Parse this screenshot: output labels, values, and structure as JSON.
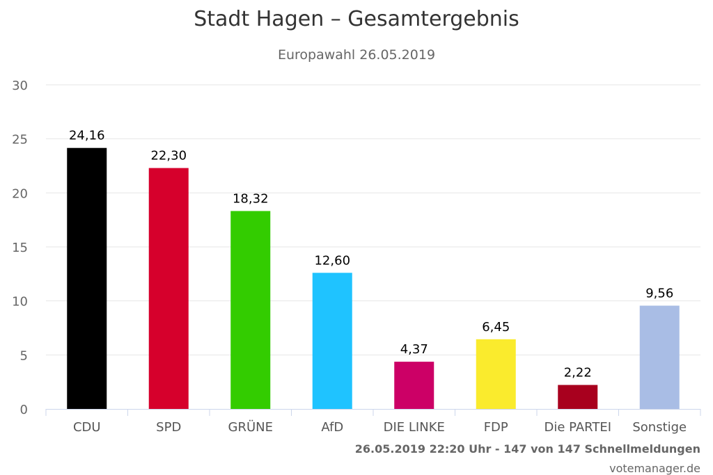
{
  "chart_data": {
    "type": "bar",
    "title": "Stadt Hagen – Gesamtergebnis",
    "subtitle": "Europawahl 26.05.2019",
    "categories": [
      "CDU",
      "SPD",
      "GRÜNE",
      "AfD",
      "DIE LINKE",
      "FDP",
      "Die PARTEI",
      "Sonstige"
    ],
    "values": [
      24.16,
      22.3,
      18.32,
      12.6,
      4.37,
      6.45,
      2.22,
      9.56
    ],
    "value_labels": [
      "24,16",
      "22,30",
      "18,32",
      "12,60",
      "4,37",
      "6,45",
      "2,22",
      "9,56"
    ],
    "colors": [
      "#000000",
      "#d6002c",
      "#33cc00",
      "#1fc3ff",
      "#cc0066",
      "#faeb2d",
      "#a8001e",
      "#a9bde5"
    ],
    "y_ticks": [
      "0",
      "5",
      "10",
      "15",
      "20",
      "25",
      "30"
    ],
    "ylim": [
      0,
      30
    ],
    "grid": true,
    "xlabel": "",
    "ylabel": ""
  },
  "footer": {
    "status": "26.05.2019 22:20 Uhr - 147 von 147 Schnellmeldungen",
    "source": "votemanager.de"
  }
}
